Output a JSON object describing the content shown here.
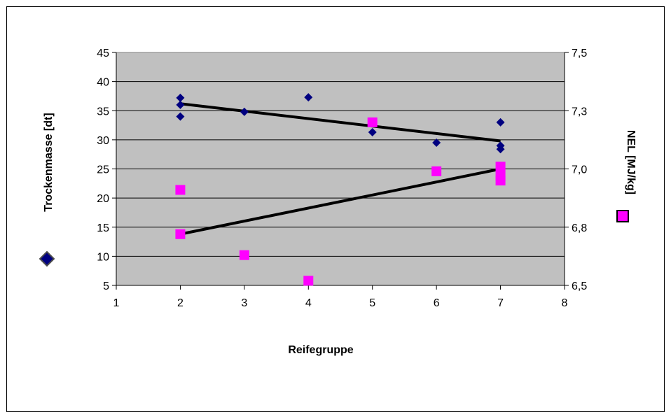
{
  "chart_data": {
    "type": "scatter",
    "title": "",
    "xlabel": "Reifegruppe",
    "ylabel": "Trockenmasse [dt]",
    "y2label": "NEL [MJ/kg]",
    "xlim": [
      1,
      8
    ],
    "ylim": [
      5,
      45
    ],
    "y2lim": [
      6.5,
      7.5
    ],
    "x_ticks": [
      "1",
      "2",
      "3",
      "4",
      "5",
      "6",
      "7",
      "8"
    ],
    "y_ticks": [
      "5",
      "10",
      "15",
      "20",
      "25",
      "30",
      "35",
      "40",
      "45"
    ],
    "y2_ticks": [
      "6,5",
      "6,8",
      "7,0",
      "7,3",
      "7,5"
    ],
    "grid": true,
    "plot_background": "#c0c0c0",
    "series": [
      {
        "marker": "diamond",
        "color": "#000080",
        "axis": "left",
        "points": [
          [
            2,
            37.2
          ],
          [
            2,
            36.0
          ],
          [
            2,
            34.0
          ],
          [
            3,
            34.8
          ],
          [
            4,
            37.3
          ],
          [
            5,
            31.3
          ],
          [
            6,
            29.5
          ],
          [
            7,
            33.0
          ],
          [
            7,
            29.0
          ],
          [
            7,
            28.4
          ]
        ]
      },
      {
        "marker": "square",
        "color": "#ff00ff",
        "axis": "right",
        "points": [
          [
            2,
            6.91
          ],
          [
            2,
            6.72
          ],
          [
            3,
            6.63
          ],
          [
            4,
            6.52
          ],
          [
            5,
            7.2
          ],
          [
            6,
            6.99
          ],
          [
            7,
            7.01
          ],
          [
            7,
            6.97
          ],
          [
            7,
            6.95
          ]
        ]
      }
    ],
    "trendlines": [
      {
        "color": "#000000",
        "axis": "left",
        "from": [
          2,
          36.2
        ],
        "to": [
          7,
          29.8
        ]
      },
      {
        "color": "#000000",
        "axis": "right",
        "from": [
          2,
          6.72
        ],
        "to": [
          7,
          7.0
        ]
      }
    ]
  }
}
